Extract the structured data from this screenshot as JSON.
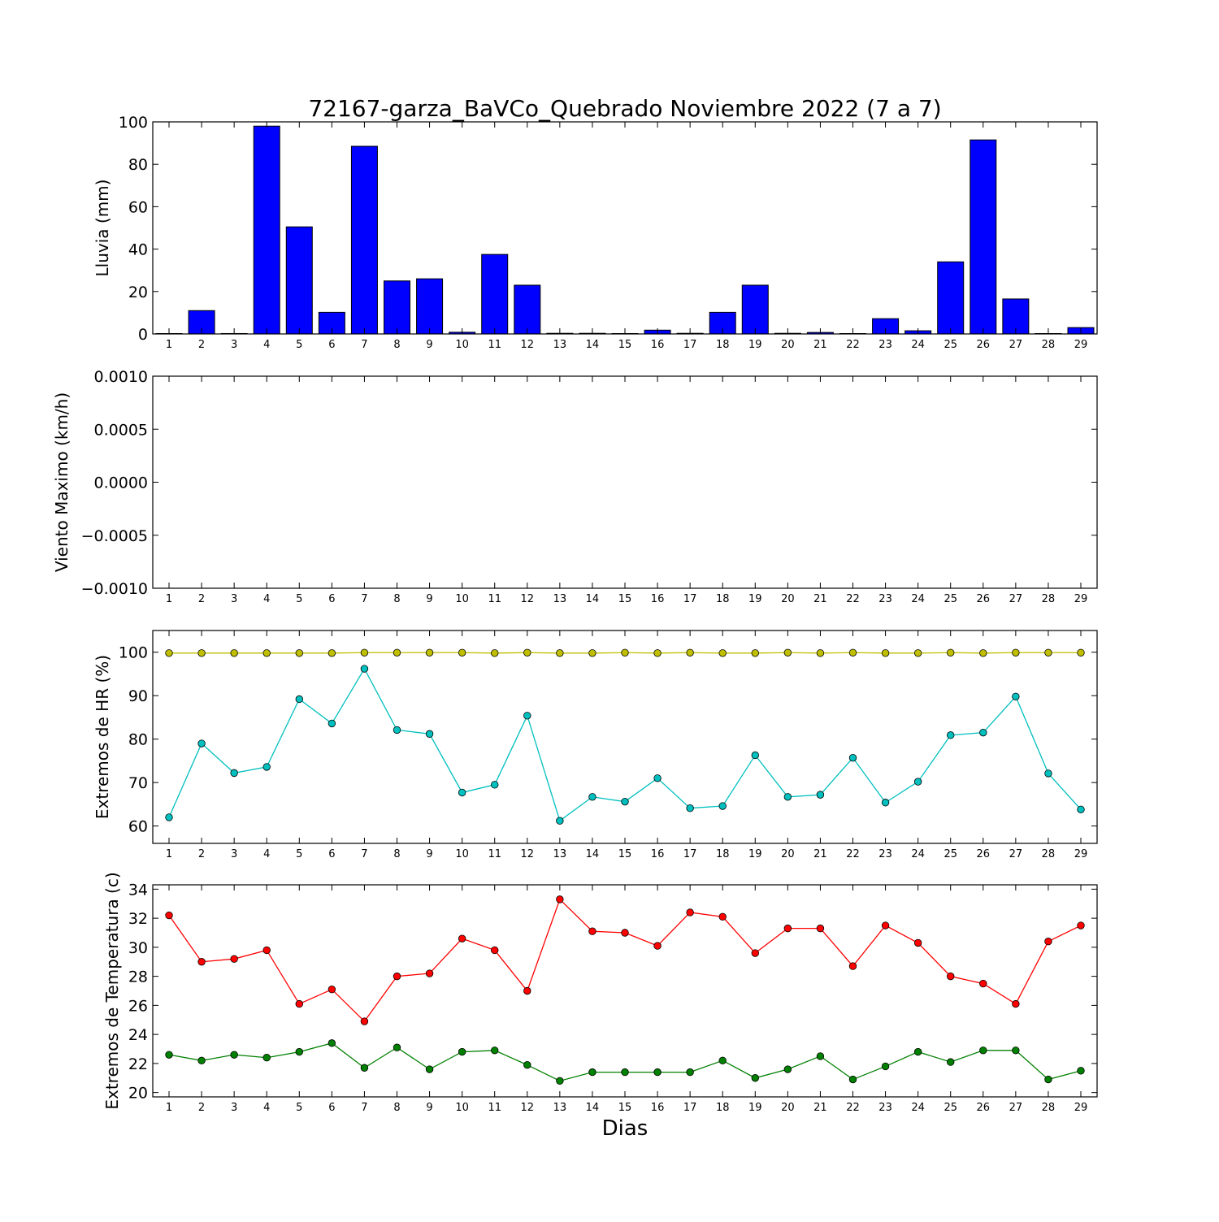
{
  "title": "72167-garza_BaVCo_Quebrado Noviembre 2022  (7 a 7)",
  "xlabel": "Dias",
  "days": [
    1,
    2,
    3,
    4,
    5,
    6,
    7,
    8,
    9,
    10,
    11,
    12,
    13,
    14,
    15,
    16,
    17,
    18,
    19,
    20,
    21,
    22,
    23,
    24,
    25,
    26,
    27,
    28,
    29
  ],
  "colors": {
    "rain": "#0000ff",
    "hr_max": "#bfbf00",
    "hr_min": "#00bfbf",
    "temp_max": "#ff0000",
    "temp_min": "#008000"
  },
  "chart_data": [
    {
      "type": "bar",
      "ylabel": "Lluvia (mm)",
      "ylim": [
        0,
        100
      ],
      "yticks": [
        0,
        20,
        40,
        60,
        80,
        100
      ],
      "ytick_labels": [
        "0",
        "20",
        "40",
        "60",
        "80",
        "100"
      ],
      "categories": [
        1,
        2,
        3,
        4,
        5,
        6,
        7,
        8,
        9,
        10,
        11,
        12,
        13,
        14,
        15,
        16,
        17,
        18,
        19,
        20,
        21,
        22,
        23,
        24,
        25,
        26,
        27,
        28,
        29
      ],
      "values": [
        0,
        11,
        0.2,
        98,
        50.5,
        10.2,
        88.5,
        25,
        26,
        0.8,
        37.5,
        23,
        0.3,
        0.3,
        0,
        1.8,
        0.3,
        10.2,
        23,
        0.3,
        0.7,
        0,
        7.2,
        1.5,
        34,
        91.5,
        16.5,
        0,
        3
      ],
      "grid": false
    },
    {
      "type": "line",
      "ylabel": "Viento Maximo (km/h)",
      "ylim": [
        -0.001,
        0.001
      ],
      "yticks": [
        -0.001,
        -0.0005,
        0,
        0.0005,
        0.001
      ],
      "ytick_labels": [
        "−0.0010",
        "−0.0005",
        "0.0000",
        "0.0005",
        "0.0010"
      ],
      "series": [],
      "grid": false
    },
    {
      "type": "line",
      "ylabel": "Extremos de HR (%)",
      "ylim": [
        56,
        105
      ],
      "yticks": [
        60,
        70,
        80,
        90,
        100
      ],
      "ytick_labels": [
        "60",
        "70",
        "80",
        "90",
        "100"
      ],
      "x": [
        1,
        2,
        3,
        4,
        5,
        6,
        7,
        8,
        9,
        10,
        11,
        12,
        13,
        14,
        15,
        16,
        17,
        18,
        19,
        20,
        21,
        22,
        23,
        24,
        25,
        26,
        27,
        28,
        29
      ],
      "series": [
        {
          "values": [
            99.8,
            99.8,
            99.8,
            99.8,
            99.8,
            99.8,
            99.9,
            99.9,
            99.9,
            99.9,
            99.8,
            99.9,
            99.8,
            99.8,
            99.9,
            99.8,
            99.9,
            99.8,
            99.8,
            99.9,
            99.8,
            99.9,
            99.8,
            99.8,
            99.9,
            99.8,
            99.9,
            99.9,
            99.9
          ],
          "color": "#bfbf00"
        },
        {
          "values": [
            62,
            79,
            72.2,
            73.6,
            89.2,
            83.6,
            96.2,
            82.1,
            81.2,
            67.7,
            69.5,
            85.4,
            61.2,
            66.7,
            65.6,
            71,
            64.1,
            64.6,
            76.3,
            66.7,
            67.2,
            75.7,
            65.4,
            70.2,
            80.9,
            81.5,
            89.8,
            72.1,
            63.8
          ],
          "color": "#00bfbf"
        }
      ],
      "grid": false
    },
    {
      "type": "line",
      "ylabel": "Extremos de Temperatura (c)",
      "ylim": [
        19.7,
        34.3
      ],
      "yticks": [
        20,
        22,
        24,
        26,
        28,
        30,
        32,
        34
      ],
      "ytick_labels": [
        "20",
        "22",
        "24",
        "26",
        "28",
        "30",
        "32",
        "34"
      ],
      "x": [
        1,
        2,
        3,
        4,
        5,
        6,
        7,
        8,
        9,
        10,
        11,
        12,
        13,
        14,
        15,
        16,
        17,
        18,
        19,
        20,
        21,
        22,
        23,
        24,
        25,
        26,
        27,
        28,
        29
      ],
      "series": [
        {
          "values": [
            32.2,
            29,
            29.2,
            29.8,
            26.1,
            27.1,
            24.9,
            28,
            28.2,
            30.6,
            29.8,
            27,
            33.3,
            31.1,
            31,
            30.1,
            32.4,
            32.1,
            29.6,
            31.3,
            31.3,
            28.7,
            31.5,
            30.3,
            28,
            27.5,
            26.1,
            30.4,
            31.5
          ],
          "color": "#ff0000"
        },
        {
          "values": [
            22.6,
            22.2,
            22.6,
            22.4,
            22.8,
            23.4,
            21.7,
            23.1,
            21.6,
            22.8,
            22.9,
            21.9,
            20.8,
            21.4,
            21.4,
            21.4,
            21.4,
            22.2,
            21,
            21.6,
            22.5,
            20.9,
            21.8,
            22.8,
            22.1,
            22.9,
            22.9,
            20.9,
            21.5
          ],
          "color": "#008000"
        }
      ],
      "grid": false
    }
  ]
}
